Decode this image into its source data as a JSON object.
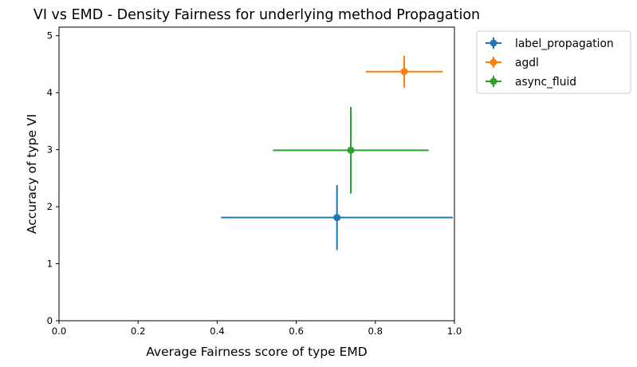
{
  "chart_data": {
    "type": "scatter",
    "title": "VI vs EMD - Density Fairness for underlying method Propagation",
    "xlabel": "Average Fairness score of type EMD",
    "ylabel": "Accuracy of type VI",
    "xlim": [
      0.0,
      1.0
    ],
    "ylim": [
      0.0,
      5.15
    ],
    "xticks": [
      0.0,
      0.2,
      0.4,
      0.6,
      0.8,
      1.0
    ],
    "xtick_labels": [
      "0.0",
      "0.2",
      "0.4",
      "0.6",
      "0.8",
      "1.0"
    ],
    "yticks": [
      0,
      1,
      2,
      3,
      4,
      5
    ],
    "ytick_labels": [
      "0",
      "1",
      "2",
      "3",
      "4",
      "5"
    ],
    "grid": false,
    "legend_position": "outside-top-right",
    "error_bars": true,
    "series": [
      {
        "name": "label_propagation",
        "color": "#1f77b4",
        "x": 0.703,
        "y": 1.81,
        "x_err": 0.293,
        "y_err": 0.57
      },
      {
        "name": "agdl",
        "color": "#ff7f0e",
        "x": 0.873,
        "y": 4.37,
        "x_err": 0.097,
        "y_err": 0.28
      },
      {
        "name": "async_fluid",
        "color": "#2ca02c",
        "x": 0.738,
        "y": 2.99,
        "x_err": 0.197,
        "y_err": 0.76
      }
    ]
  }
}
